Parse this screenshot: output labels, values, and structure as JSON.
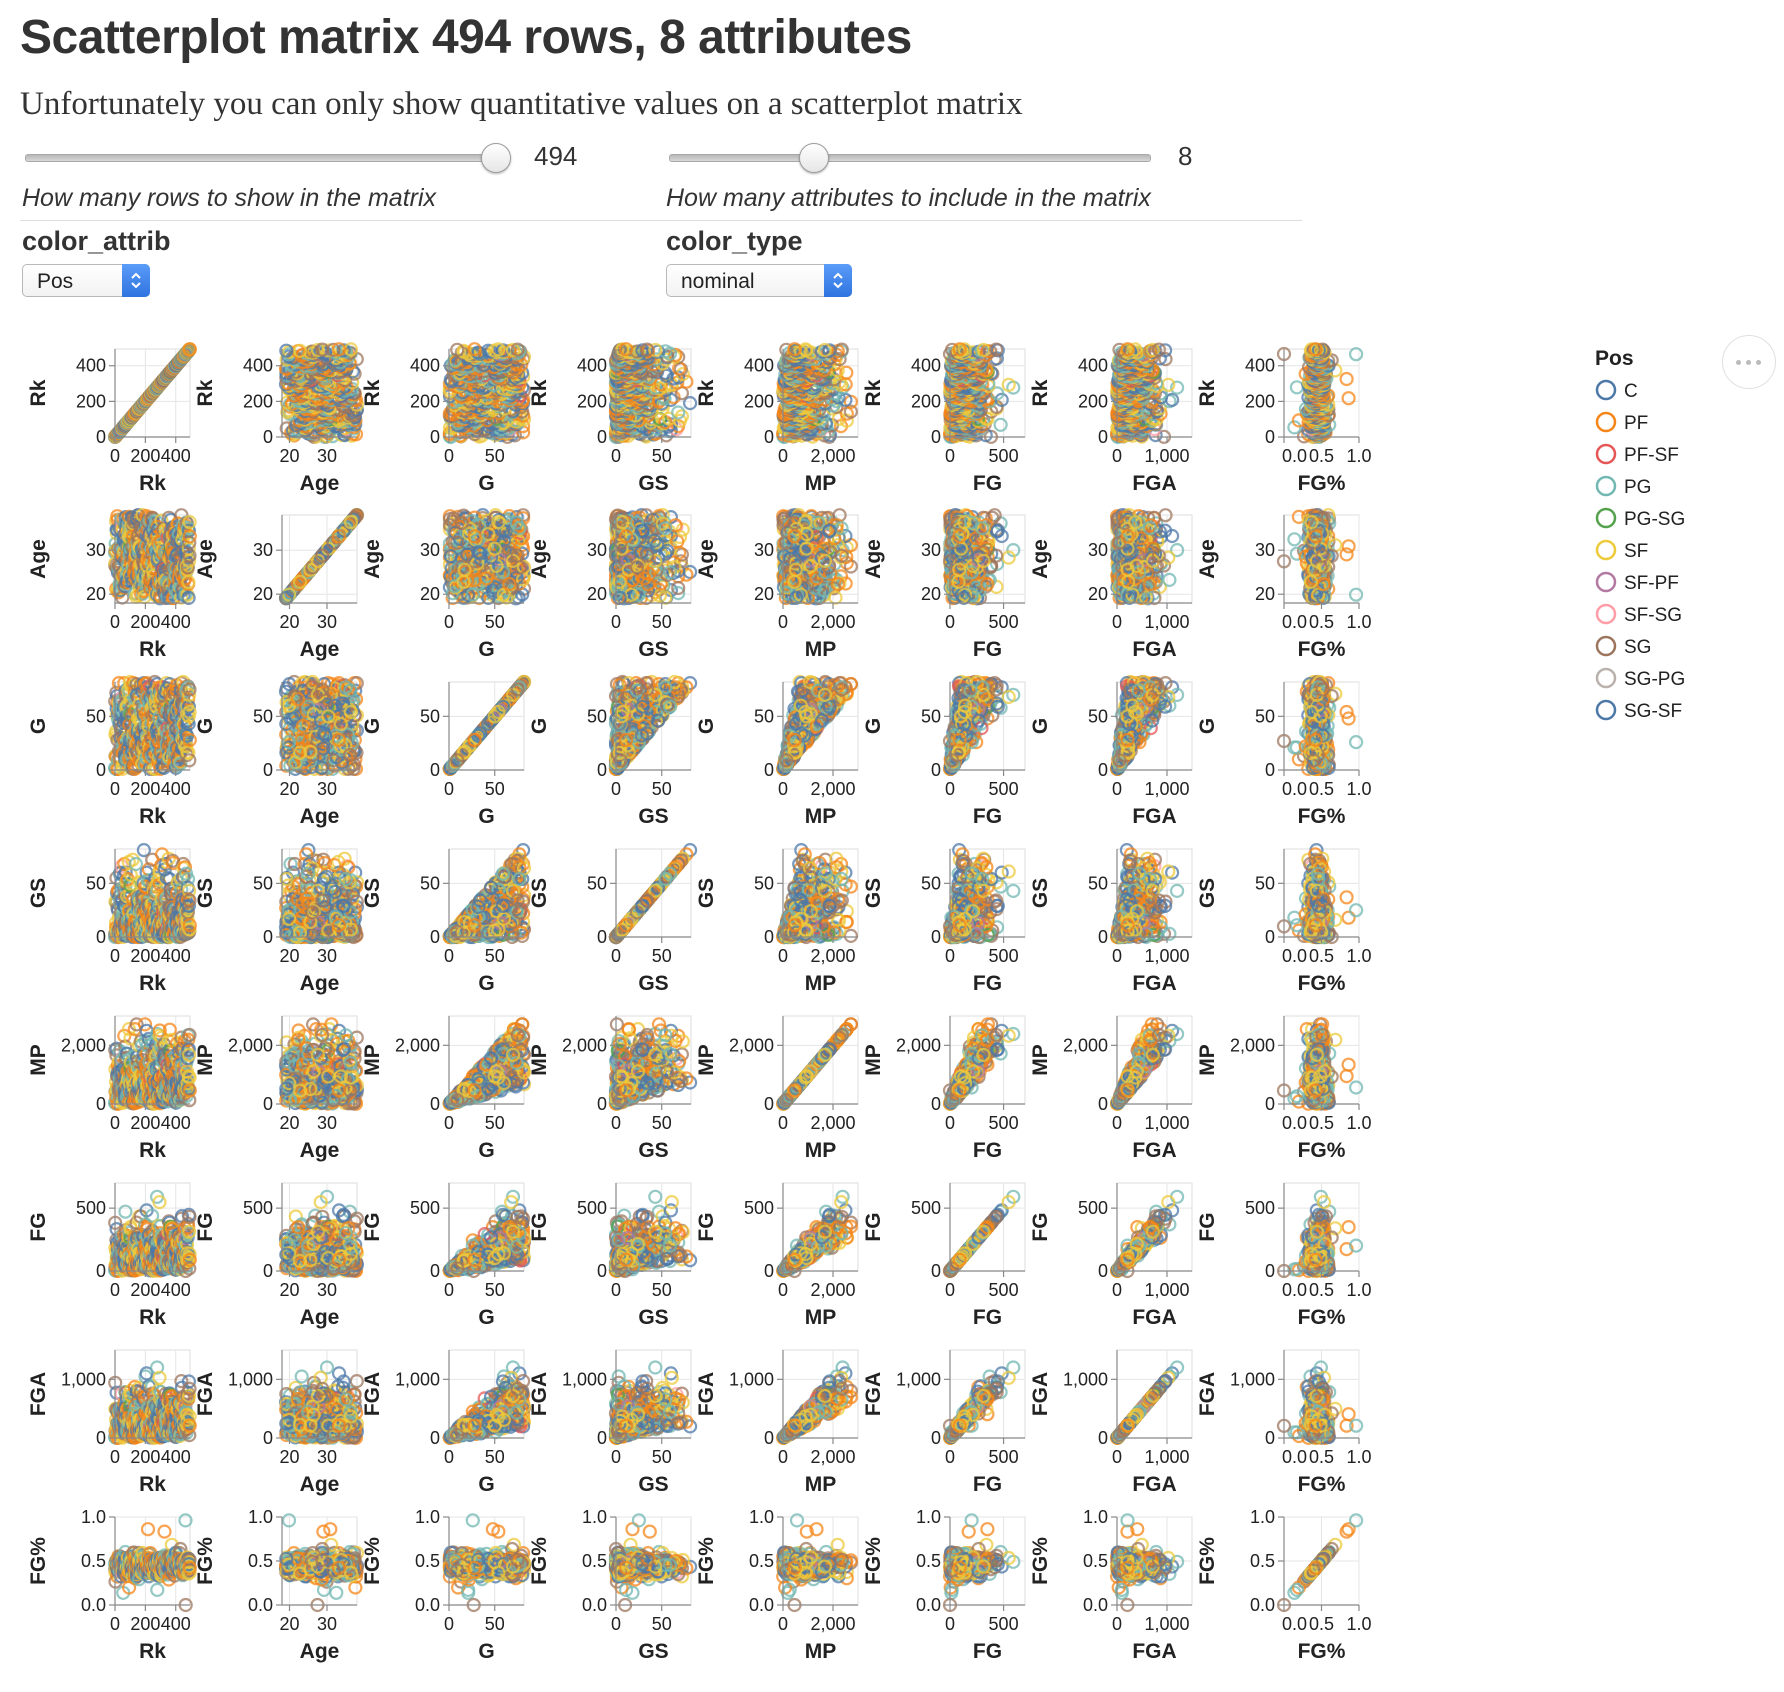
{
  "title": "Scatterplot matrix 494 rows, 8 attributes",
  "subtitle": "Unfortunately you can only show quantitative values on a scatterplot matrix",
  "rows_slider": {
    "value": "494",
    "hint": "How many rows to show in the matrix",
    "fraction": 1.0
  },
  "attrs_slider": {
    "value": "8",
    "hint": "How many attributes to include in the matrix",
    "fraction": 0.3
  },
  "color_attrib": {
    "label": "color_attrib",
    "selected": "Pos"
  },
  "color_type": {
    "label": "color_type",
    "selected": "nominal"
  },
  "more_button_icon": "ellipsis-icon",
  "chart_data": {
    "type": "scatter",
    "attributes": [
      {
        "name": "Rk",
        "domain": [
          0,
          494
        ],
        "ticks": [
          0,
          200,
          400
        ],
        "tick_labels": [
          "0",
          "200",
          "400"
        ]
      },
      {
        "name": "Age",
        "domain": [
          18,
          38
        ],
        "ticks": [
          20,
          30
        ],
        "tick_labels": [
          "20",
          "30"
        ]
      },
      {
        "name": "G",
        "domain": [
          0,
          82
        ],
        "ticks": [
          0,
          50
        ],
        "tick_labels": [
          "0",
          "50"
        ]
      },
      {
        "name": "GS",
        "domain": [
          0,
          82
        ],
        "ticks": [
          0,
          50
        ],
        "tick_labels": [
          "0",
          "50"
        ]
      },
      {
        "name": "MP",
        "domain": [
          0,
          3000
        ],
        "ticks": [
          0,
          2000
        ],
        "tick_labels": [
          "0",
          "2,000"
        ]
      },
      {
        "name": "FG",
        "domain": [
          0,
          700
        ],
        "ticks": [
          0,
          500
        ],
        "tick_labels": [
          "0",
          "500"
        ]
      },
      {
        "name": "FGA",
        "domain": [
          0,
          1500
        ],
        "ticks": [
          0,
          1000
        ],
        "tick_labels": [
          "0",
          "1,000"
        ]
      },
      {
        "name": "FG%",
        "domain": [
          0,
          1
        ],
        "ticks": [
          0,
          0.5,
          1
        ],
        "tick_labels": [
          "0.0",
          "0.5",
          "1.0"
        ]
      }
    ],
    "legend": {
      "title": "Pos",
      "placement": "right",
      "entries": [
        {
          "label": "C",
          "color": "#4c78a8"
        },
        {
          "label": "PF",
          "color": "#f58518"
        },
        {
          "label": "PF-SF",
          "color": "#e45756"
        },
        {
          "label": "PG",
          "color": "#72b7b2"
        },
        {
          "label": "PG-SG",
          "color": "#54a24b"
        },
        {
          "label": "SF",
          "color": "#eeca3b"
        },
        {
          "label": "SF-PF",
          "color": "#b279a2"
        },
        {
          "label": "SF-SG",
          "color": "#ff9da6"
        },
        {
          "label": "SG",
          "color": "#9d755d"
        },
        {
          "label": "SG-PG",
          "color": "#bab0ac"
        },
        {
          "label": "SG-SF",
          "color": "#4c78a8"
        }
      ]
    },
    "position_weights": [
      0.22,
      0.24,
      0.005,
      0.17,
      0.002,
      0.14,
      0.003,
      0.002,
      0.2,
      0.002,
      0.016
    ],
    "mark": "open circle",
    "grid": true
  }
}
